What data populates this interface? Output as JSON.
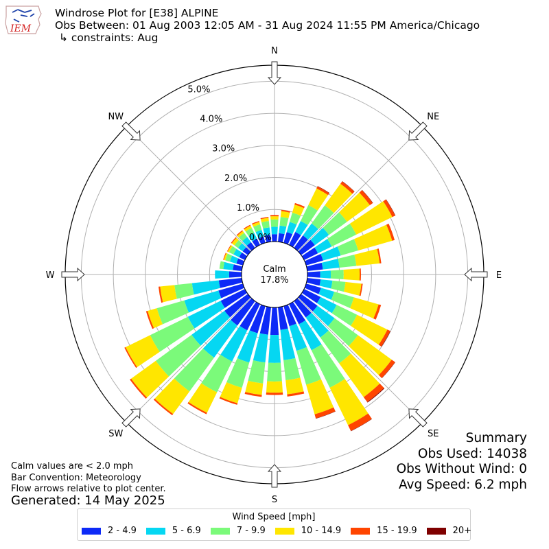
{
  "header": {
    "logo_text": "IEM",
    "title": "Windrose Plot for [E38] ALPINE",
    "obs_between": "Obs Between: 01 Aug 2003 12:05 AM - 31 Aug 2024 11:55 PM America/Chicago",
    "constraints": "↳ constraints: Aug"
  },
  "calm": {
    "label": "Calm",
    "value": "17.8%"
  },
  "summary": {
    "title": "Summary",
    "obs_used": "Obs Used: 14038",
    "obs_without_wind": "Obs Without Wind: 0",
    "avg_speed": "Avg Speed: 6.2 mph"
  },
  "notes": {
    "calm_note": "Calm values are < 2.0 mph",
    "bar_convention": "Bar Convention: Meteorology",
    "flow_arrows": "Flow arrows relative to plot center.",
    "generated": "Generated: 14 May 2025"
  },
  "legend": {
    "title": "Wind Speed [mph]"
  },
  "chart_data": {
    "type": "windrose",
    "direction_labels": [
      "N",
      "NE",
      "E",
      "SE",
      "S",
      "SW",
      "W",
      "NW"
    ],
    "radial_tick_labels": [
      "0.0%",
      "1.0%",
      "2.0%",
      "3.0%",
      "4.0%",
      "5.0%"
    ],
    "radial_ticks": [
      0,
      1,
      2,
      3,
      4,
      5
    ],
    "rmax": 5.5,
    "calm_percent": 17.8,
    "bar_convention": "meteorology",
    "direction_bin_width_deg": 10,
    "speed_bins": [
      {
        "label": "2 - 4.9",
        "color": "#0d2af7"
      },
      {
        "label": "5 - 6.9",
        "color": "#05d7f2"
      },
      {
        "label": "7 - 9.9",
        "color": "#7bfa7a"
      },
      {
        "label": "10 - 14.9",
        "color": "#ffe600"
      },
      {
        "label": "15 - 19.9",
        "color": "#ff4500"
      },
      {
        "label": "20+",
        "color": "#7f0000"
      }
    ],
    "directions": [
      {
        "dir": 0,
        "values": [
          0.23,
          0.23,
          0.23,
          0.1,
          0.04,
          0.0
        ]
      },
      {
        "dir": 10,
        "values": [
          0.27,
          0.24,
          0.27,
          0.18,
          0.04,
          0.0
        ]
      },
      {
        "dir": 20,
        "values": [
          0.35,
          0.33,
          0.3,
          0.26,
          0.05,
          0.0
        ]
      },
      {
        "dir": 30,
        "values": [
          0.45,
          0.38,
          0.55,
          0.58,
          0.07,
          0.01
        ]
      },
      {
        "dir": 40,
        "values": [
          0.48,
          0.46,
          0.7,
          0.83,
          0.09,
          0.01
        ]
      },
      {
        "dir": 50,
        "values": [
          0.53,
          0.54,
          0.7,
          0.88,
          0.11,
          0.01
        ]
      },
      {
        "dir": 60,
        "values": [
          0.48,
          0.48,
          0.85,
          1.25,
          0.1,
          0.01
        ]
      },
      {
        "dir": 70,
        "values": [
          0.55,
          0.57,
          0.57,
          1.1,
          0.08,
          0.0
        ]
      },
      {
        "dir": 80,
        "values": [
          0.49,
          0.52,
          0.53,
          0.73,
          0.05,
          0.0
        ]
      },
      {
        "dir": 90,
        "values": [
          0.4,
          0.33,
          0.4,
          0.5,
          0.04,
          0.0
        ]
      },
      {
        "dir": 100,
        "values": [
          0.42,
          0.37,
          0.41,
          0.5,
          0.04,
          0.0
        ]
      },
      {
        "dir": 110,
        "values": [
          0.48,
          0.43,
          0.64,
          0.8,
          0.08,
          0.0
        ]
      },
      {
        "dir": 120,
        "values": [
          0.57,
          0.56,
          0.71,
          1.05,
          0.1,
          0.01
        ]
      },
      {
        "dir": 130,
        "values": [
          0.63,
          0.66,
          0.9,
          1.3,
          0.13,
          0.01
        ]
      },
      {
        "dir": 140,
        "values": [
          0.63,
          0.77,
          1.0,
          1.3,
          0.19,
          0.02
        ]
      },
      {
        "dir": 150,
        "values": [
          0.7,
          0.9,
          1.3,
          1.3,
          0.2,
          0.01
        ]
      },
      {
        "dir": 160,
        "values": [
          0.65,
          0.8,
          1.1,
          0.96,
          0.13,
          0.01
        ]
      },
      {
        "dir": 170,
        "values": [
          0.71,
          0.95,
          0.63,
          0.44,
          0.07,
          0.0
        ]
      },
      {
        "dir": 180,
        "values": [
          0.86,
          0.87,
          0.58,
          0.35,
          0.07,
          0.0
        ]
      },
      {
        "dir": 190,
        "values": [
          0.86,
          0.87,
          0.66,
          0.36,
          0.06,
          0.0
        ]
      },
      {
        "dir": 200,
        "values": [
          0.88,
          0.95,
          0.82,
          0.5,
          0.05,
          0.0
        ]
      },
      {
        "dir": 210,
        "values": [
          0.91,
          1.08,
          1.07,
          0.71,
          0.05,
          0.0
        ]
      },
      {
        "dir": 220,
        "values": [
          0.94,
          1.24,
          1.3,
          0.87,
          0.05,
          0.0
        ]
      },
      {
        "dir": 230,
        "values": [
          0.9,
          1.27,
          1.38,
          0.95,
          0.05,
          0.0
        ]
      },
      {
        "dir": 240,
        "values": [
          0.84,
          1.14,
          1.31,
          0.85,
          0.04,
          0.0
        ]
      },
      {
        "dir": 250,
        "values": [
          0.79,
          1.11,
          0.89,
          0.3,
          0.05,
          0.0
        ]
      },
      {
        "dir": 260,
        "values": [
          0.72,
          0.84,
          0.55,
          0.45,
          0.05,
          0.0
        ]
      },
      {
        "dir": 270,
        "values": [
          0.39,
          0.44,
          0.0,
          0.0,
          0.0,
          0.0
        ]
      },
      {
        "dir": 280,
        "values": [
          0.28,
          0.3,
          0.12,
          0.0,
          0.0,
          0.0
        ]
      },
      {
        "dir": 290,
        "values": [
          0.21,
          0.21,
          0.15,
          0.05,
          0.02,
          0.0
        ]
      },
      {
        "dir": 300,
        "values": [
          0.2,
          0.2,
          0.15,
          0.05,
          0.02,
          0.0
        ]
      },
      {
        "dir": 310,
        "values": [
          0.2,
          0.18,
          0.14,
          0.1,
          0.03,
          0.0
        ]
      },
      {
        "dir": 320,
        "values": [
          0.22,
          0.2,
          0.16,
          0.07,
          0.03,
          0.0
        ]
      },
      {
        "dir": 330,
        "values": [
          0.22,
          0.2,
          0.17,
          0.08,
          0.03,
          0.0
        ]
      },
      {
        "dir": 340,
        "values": [
          0.21,
          0.21,
          0.18,
          0.08,
          0.03,
          0.0
        ]
      },
      {
        "dir": 350,
        "values": [
          0.22,
          0.23,
          0.2,
          0.1,
          0.03,
          0.0
        ]
      }
    ]
  }
}
